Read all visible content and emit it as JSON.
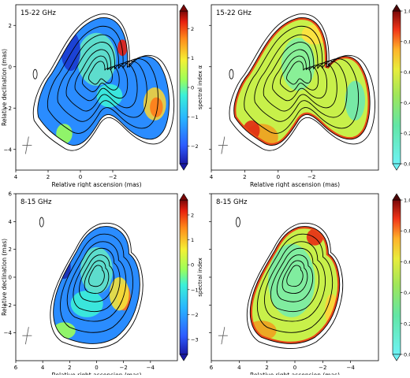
{
  "chart_data": [
    {
      "type": "heatmap",
      "label": "15-22 GHz",
      "xlabel": "Relative right ascension (mas)",
      "ylabel": "Relative declination (mas)",
      "colorbar_label": "spectral index α",
      "xlim": [
        4,
        -6
      ],
      "ylim": [
        -5,
        3
      ],
      "xticks": [
        4,
        2,
        0,
        -2
      ],
      "yticks": [
        2,
        0,
        -2,
        -4
      ],
      "cbar_ticks": [
        2,
        1,
        0,
        -1,
        -2
      ],
      "cbar_range": [
        -2.6,
        2.6
      ],
      "cmap": "jet",
      "colorbar_extends": "both",
      "has_beam_contour": true,
      "has_cross_marker": true
    },
    {
      "type": "heatmap",
      "label": "15-22 GHz",
      "xlabel": "Relative right ascension (mas)",
      "ylabel": "",
      "colorbar_label": "spectral index error σα",
      "xlim": [
        4,
        -6
      ],
      "ylim": [
        -5,
        3
      ],
      "xticks": [
        4,
        2,
        0,
        -2
      ],
      "yticks": [
        2,
        0,
        -2,
        -4
      ],
      "cbar_ticks": [
        1.0,
        0.8,
        0.6,
        0.4,
        0.2,
        0.0
      ],
      "cbar_range": [
        0.0,
        1.0
      ],
      "cmap": "error",
      "colorbar_extends": "both",
      "has_beam_contour": true,
      "has_cross_marker": true
    },
    {
      "type": "heatmap",
      "label": "8-15 GHz",
      "xlabel": "Relative right ascension (mas)",
      "ylabel": "Relative declination (mas)",
      "colorbar_label": "spectral index",
      "xlim": [
        6,
        -6
      ],
      "ylim": [
        -6,
        6
      ],
      "xticks": [
        6,
        4,
        2,
        0,
        -2,
        -4
      ],
      "yticks": [
        6,
        4,
        2,
        0,
        -2,
        -4
      ],
      "cbar_ticks": [
        2,
        1,
        0,
        -1,
        -2,
        -3
      ],
      "cbar_range": [
        -3.6,
        2.6
      ],
      "cmap": "jet",
      "colorbar_extends": "both",
      "has_beam_contour": true,
      "has_cross_marker": true
    },
    {
      "type": "heatmap",
      "label": "8-15 GHz",
      "xlabel": "Relative right ascension (mas)",
      "ylabel": "",
      "colorbar_label": "spectral index error σα",
      "xlim": [
        6,
        -6
      ],
      "ylim": [
        -6,
        6
      ],
      "xticks": [
        6,
        4,
        2,
        0,
        -2,
        -4
      ],
      "yticks": [
        6,
        4,
        2,
        0,
        -2,
        -4
      ],
      "cbar_ticks": [
        1.0,
        0.8,
        0.6,
        0.4,
        0.2,
        0.0
      ],
      "cbar_range": [
        0.0,
        1.0
      ],
      "cmap": "error",
      "colorbar_extends": "both",
      "has_beam_contour": true,
      "has_cross_marker": true
    }
  ]
}
